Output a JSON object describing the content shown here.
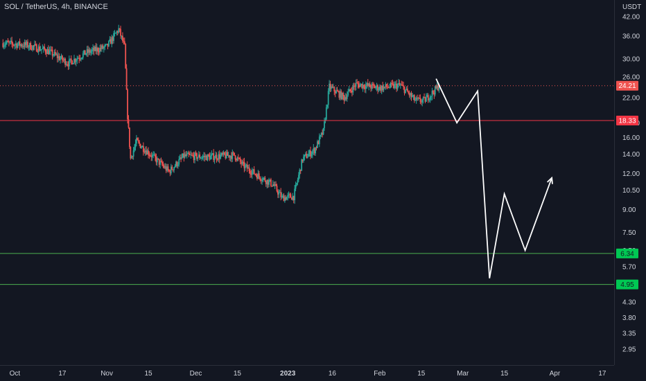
{
  "header": {
    "title": "SOL / TetherUS, 4h, BINANCE"
  },
  "currency_label": "USDT",
  "colors": {
    "background": "#131722",
    "up": "#26a69a",
    "down": "#ef5350",
    "red_line": "#f23645",
    "green_line": "#4caf50",
    "projection": "#ffffff",
    "price_line": "#ef5350"
  },
  "chart_data": {
    "type": "candlestick",
    "title": "SOL / TetherUS, 4h, BINANCE",
    "y_scale": "log",
    "ylim": [
      2.6,
      48
    ],
    "y_ticks": [
      "42.00",
      "36.00",
      "30.00",
      "26.00",
      "22.00",
      "18.00",
      "16.00",
      "14.00",
      "12.00",
      "10.50",
      "9.00",
      "7.50",
      "6.50",
      "5.70",
      "4.30",
      "3.80",
      "3.35",
      "2.95"
    ],
    "x_ticks": [
      "Oct",
      "17",
      "Nov",
      "15",
      "Dec",
      "15",
      "2023",
      "16",
      "Feb",
      "15",
      "Mar",
      "15",
      "Apr",
      "17"
    ],
    "price_path": [
      {
        "date": "2022-09-27",
        "price": 34.0
      },
      {
        "date": "2022-10-05",
        "price": 33.5
      },
      {
        "date": "2022-10-12",
        "price": 32.0
      },
      {
        "date": "2022-10-19",
        "price": 29.0
      },
      {
        "date": "2022-10-25",
        "price": 31.5
      },
      {
        "date": "2022-11-01",
        "price": 33.0
      },
      {
        "date": "2022-11-05",
        "price": 38.0
      },
      {
        "date": "2022-11-07",
        "price": 33.0
      },
      {
        "date": "2022-11-08",
        "price": 19.0
      },
      {
        "date": "2022-11-09",
        "price": 13.5
      },
      {
        "date": "2022-11-11",
        "price": 15.5
      },
      {
        "date": "2022-11-15",
        "price": 14.2
      },
      {
        "date": "2022-11-22",
        "price": 12.2
      },
      {
        "date": "2022-11-27",
        "price": 13.8
      },
      {
        "date": "2022-12-05",
        "price": 13.7
      },
      {
        "date": "2022-12-14",
        "price": 13.9
      },
      {
        "date": "2022-12-17",
        "price": 12.8
      },
      {
        "date": "2022-12-22",
        "price": 11.8
      },
      {
        "date": "2022-12-27",
        "price": 11.0
      },
      {
        "date": "2022-12-30",
        "price": 9.9
      },
      {
        "date": "2023-01-03",
        "price": 10.0
      },
      {
        "date": "2023-01-06",
        "price": 13.5
      },
      {
        "date": "2023-01-10",
        "price": 14.5
      },
      {
        "date": "2023-01-13",
        "price": 16.8
      },
      {
        "date": "2023-01-15",
        "price": 24.0
      },
      {
        "date": "2023-01-20",
        "price": 22.0
      },
      {
        "date": "2023-01-24",
        "price": 24.5
      },
      {
        "date": "2023-02-01",
        "price": 23.8
      },
      {
        "date": "2023-02-08",
        "price": 24.3
      },
      {
        "date": "2023-02-13",
        "price": 21.5
      },
      {
        "date": "2023-02-16",
        "price": 21.5
      },
      {
        "date": "2023-02-19",
        "price": 23.0
      },
      {
        "date": "2023-02-21",
        "price": 24.21
      }
    ],
    "horizontal_lines": [
      {
        "price": 18.33,
        "label": "18.33",
        "color": "#f23645"
      },
      {
        "price": 6.34,
        "label": "6.34",
        "color": "#4caf50"
      },
      {
        "price": 4.95,
        "label": "4.95",
        "color": "#4caf50"
      }
    ],
    "current_price": {
      "price": 24.21,
      "label": "24.21"
    },
    "projection_path": [
      {
        "date": "2023-02-20",
        "price": 25.6
      },
      {
        "date": "2023-02-27",
        "price": 18.0
      },
      {
        "date": "2023-03-06",
        "price": 23.2
      },
      {
        "date": "2023-03-10",
        "price": 5.2
      },
      {
        "date": "2023-03-15",
        "price": 10.2
      },
      {
        "date": "2023-03-22",
        "price": 6.5
      },
      {
        "date": "2023-03-31",
        "price": 11.6
      }
    ],
    "grid": false
  }
}
